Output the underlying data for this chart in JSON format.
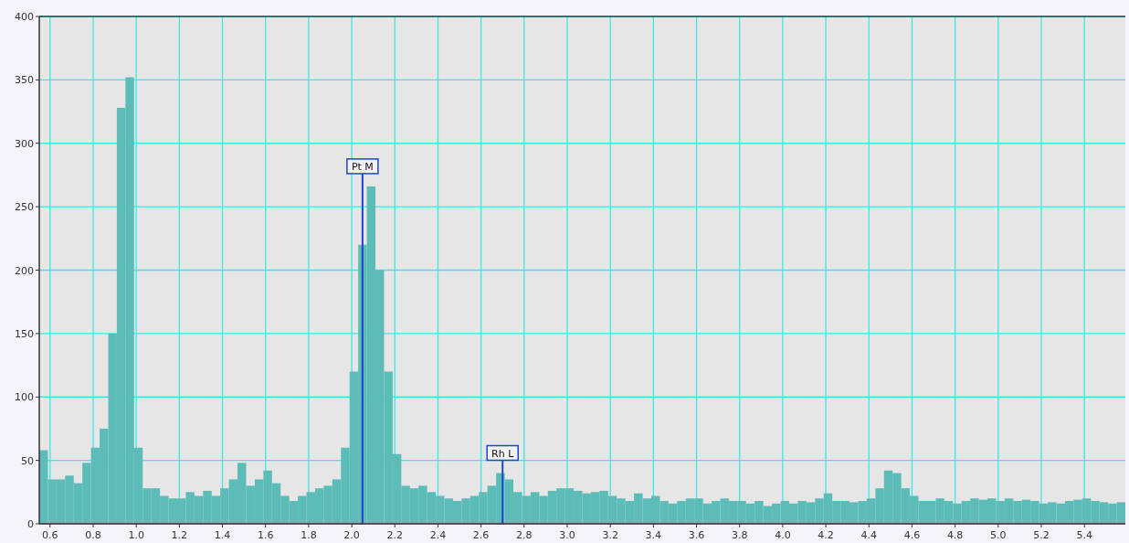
{
  "chart_data": {
    "type": "histogram",
    "color": "#5bbcb8",
    "bins": [
      0.55,
      0.59,
      0.63,
      0.67,
      0.71,
      0.75,
      0.79,
      0.83,
      0.87,
      0.91,
      0.95,
      0.99,
      1.03,
      1.07,
      1.11,
      1.15,
      1.19,
      1.23,
      1.27,
      1.31,
      1.35,
      1.39,
      1.43,
      1.47,
      1.51,
      1.55,
      1.59,
      1.63,
      1.67,
      1.71,
      1.75,
      1.79,
      1.83,
      1.87,
      1.91,
      1.95,
      1.99,
      2.03,
      2.07,
      2.11,
      2.15,
      2.19,
      2.23,
      2.27,
      2.31,
      2.35,
      2.39,
      2.43,
      2.47,
      2.51,
      2.55,
      2.59,
      2.63,
      2.67,
      2.71,
      2.75,
      2.79,
      2.83,
      2.87,
      2.91,
      2.95,
      2.99,
      3.03,
      3.07,
      3.11,
      3.15,
      3.19,
      3.23,
      3.27,
      3.31,
      3.35,
      3.39,
      3.43,
      3.47,
      3.51,
      3.55,
      3.59,
      3.63,
      3.67,
      3.71,
      3.75,
      3.79,
      3.83,
      3.87,
      3.91,
      3.95,
      3.99,
      4.03,
      4.07,
      4.11,
      4.15,
      4.19,
      4.23,
      4.27,
      4.31,
      4.35,
      4.39,
      4.43,
      4.47,
      4.51,
      4.55,
      4.59,
      4.63,
      4.67,
      4.71,
      4.75,
      4.79,
      4.83,
      4.87,
      4.91,
      4.95,
      4.99,
      5.03,
      5.07,
      5.11,
      5.15,
      5.19,
      5.23,
      5.27,
      5.31,
      5.35,
      5.39,
      5.43,
      5.47,
      5.51,
      5.55,
      5.59
    ],
    "values": [
      58,
      35,
      35,
      38,
      32,
      48,
      60,
      75,
      150,
      328,
      352,
      60,
      28,
      28,
      22,
      20,
      20,
      25,
      22,
      26,
      22,
      28,
      35,
      48,
      30,
      35,
      42,
      32,
      22,
      18,
      22,
      25,
      28,
      30,
      35,
      60,
      120,
      220,
      266,
      200,
      120,
      55,
      30,
      28,
      30,
      25,
      22,
      20,
      18,
      20,
      22,
      25,
      30,
      40,
      35,
      25,
      22,
      25,
      22,
      26,
      28,
      28,
      26,
      24,
      25,
      26,
      22,
      20,
      18,
      24,
      20,
      22,
      18,
      16,
      18,
      20,
      20,
      16,
      18,
      20,
      18,
      18,
      16,
      18,
      14,
      16,
      18,
      16,
      18,
      17,
      20,
      24,
      18,
      18,
      17,
      18,
      20,
      28,
      42,
      40,
      28,
      22,
      18,
      18,
      20,
      18,
      16,
      18,
      20,
      19,
      20,
      18,
      20,
      18,
      19,
      18,
      16,
      17,
      16,
      18,
      19,
      20,
      18,
      17,
      16,
      17
    ],
    "xlim": [
      0.55,
      5.59
    ],
    "ylim": [
      0,
      400
    ],
    "xticks": [
      0.6,
      0.8,
      {
        "value": 1,
        "label": "1.0"
      },
      1.2,
      1.4,
      1.6,
      1.8,
      {
        "value": 2,
        "label": "2.0"
      },
      2.2,
      2.4,
      2.6,
      2.8,
      {
        "value": 3,
        "label": "3.0"
      },
      3.2,
      3.4,
      3.6,
      3.8,
      {
        "value": 4,
        "label": "4.0"
      },
      4.2,
      4.4,
      4.6,
      4.8,
      {
        "value": 5,
        "label": "5.0"
      },
      5.2,
      5.4
    ],
    "yticks": [
      0,
      50,
      100,
      150,
      200,
      250,
      300,
      350,
      400
    ],
    "grid": true,
    "ref_lines": [
      {
        "axis": "x",
        "value": 2.05,
        "label": "Pt M",
        "color": "#1f45c8"
      },
      {
        "axis": "x",
        "value": 2.7,
        "label": "Rh L",
        "color": "#1f45c8"
      }
    ]
  }
}
